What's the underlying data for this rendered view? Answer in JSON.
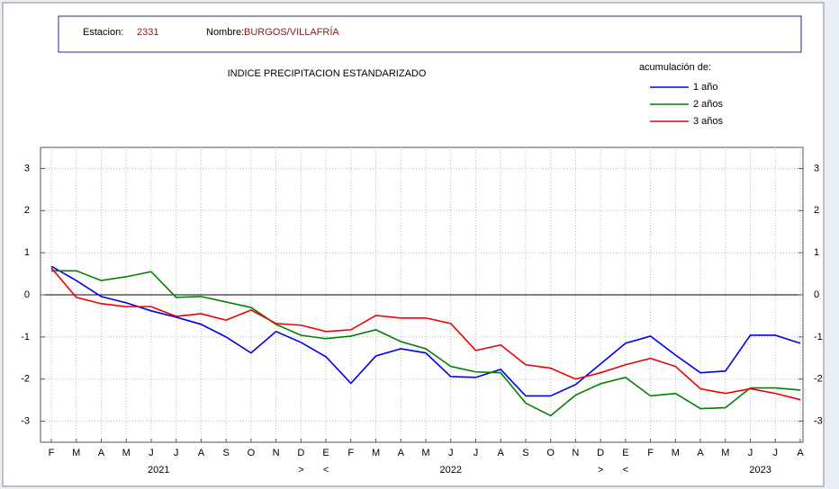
{
  "header": {
    "station_label": "Estacion:",
    "station_code": "2331",
    "name_label": "Nombre:",
    "name": "BURGOS/VILLAFRÍA"
  },
  "chart_data": {
    "type": "line",
    "title": "INDICE  PRECIPITACION  ESTANDARIZADO",
    "legend_title": "acumulación de:",
    "categories": [
      "F",
      "M",
      "A",
      "M",
      "J",
      "J",
      "A",
      "S",
      "O",
      "N",
      "D",
      "E",
      "F",
      "M",
      "A",
      "M",
      "J",
      "J",
      "A",
      "S",
      "O",
      "N",
      "D",
      "E",
      "F",
      "M",
      "A",
      "M",
      "J",
      "J",
      "A"
    ],
    "year_labels": [
      "2021",
      "2022",
      "2023"
    ],
    "year_breaks": [
      ">",
      "<",
      ">",
      "<"
    ],
    "ylim": [
      -3.5,
      3.5
    ],
    "yticks": [
      -3,
      -2,
      -1,
      0,
      1,
      2,
      3
    ],
    "grid": true,
    "series": [
      {
        "name": "1 año",
        "color": "#0000ee",
        "values": [
          0.68,
          0.34,
          -0.04,
          -0.19,
          -0.38,
          -0.53,
          -0.7,
          -1.0,
          -1.38,
          -0.87,
          -1.13,
          -1.47,
          -2.1,
          -1.45,
          -1.28,
          -1.38,
          -1.94,
          -1.96,
          -1.77,
          -2.4,
          -2.4,
          -2.13,
          -1.64,
          -1.15,
          -0.98,
          -1.43,
          -1.85,
          -1.81,
          -0.96,
          -0.96,
          -1.15
        ]
      },
      {
        "name": "2 años",
        "color": "#008000",
        "values": [
          0.57,
          0.57,
          0.34,
          0.43,
          0.55,
          -0.06,
          -0.04,
          -0.17,
          -0.3,
          -0.7,
          -0.96,
          -1.04,
          -0.98,
          -0.83,
          -1.11,
          -1.28,
          -1.7,
          -1.83,
          -1.85,
          -2.57,
          -2.87,
          -2.38,
          -2.11,
          -1.96,
          -2.4,
          -2.34,
          -2.7,
          -2.68,
          -2.21,
          -2.21,
          -2.26
        ]
      },
      {
        "name": "3 años",
        "color": "#ee0000",
        "values": [
          0.64,
          -0.06,
          -0.21,
          -0.28,
          -0.28,
          -0.51,
          -0.45,
          -0.6,
          -0.36,
          -0.68,
          -0.72,
          -0.87,
          -0.83,
          -0.49,
          -0.55,
          -0.55,
          -0.68,
          -1.32,
          -1.19,
          -1.66,
          -1.74,
          -2.0,
          -1.85,
          -1.66,
          -1.51,
          -1.7,
          -2.23,
          -2.34,
          -2.23,
          -2.34,
          -2.49
        ]
      }
    ]
  }
}
